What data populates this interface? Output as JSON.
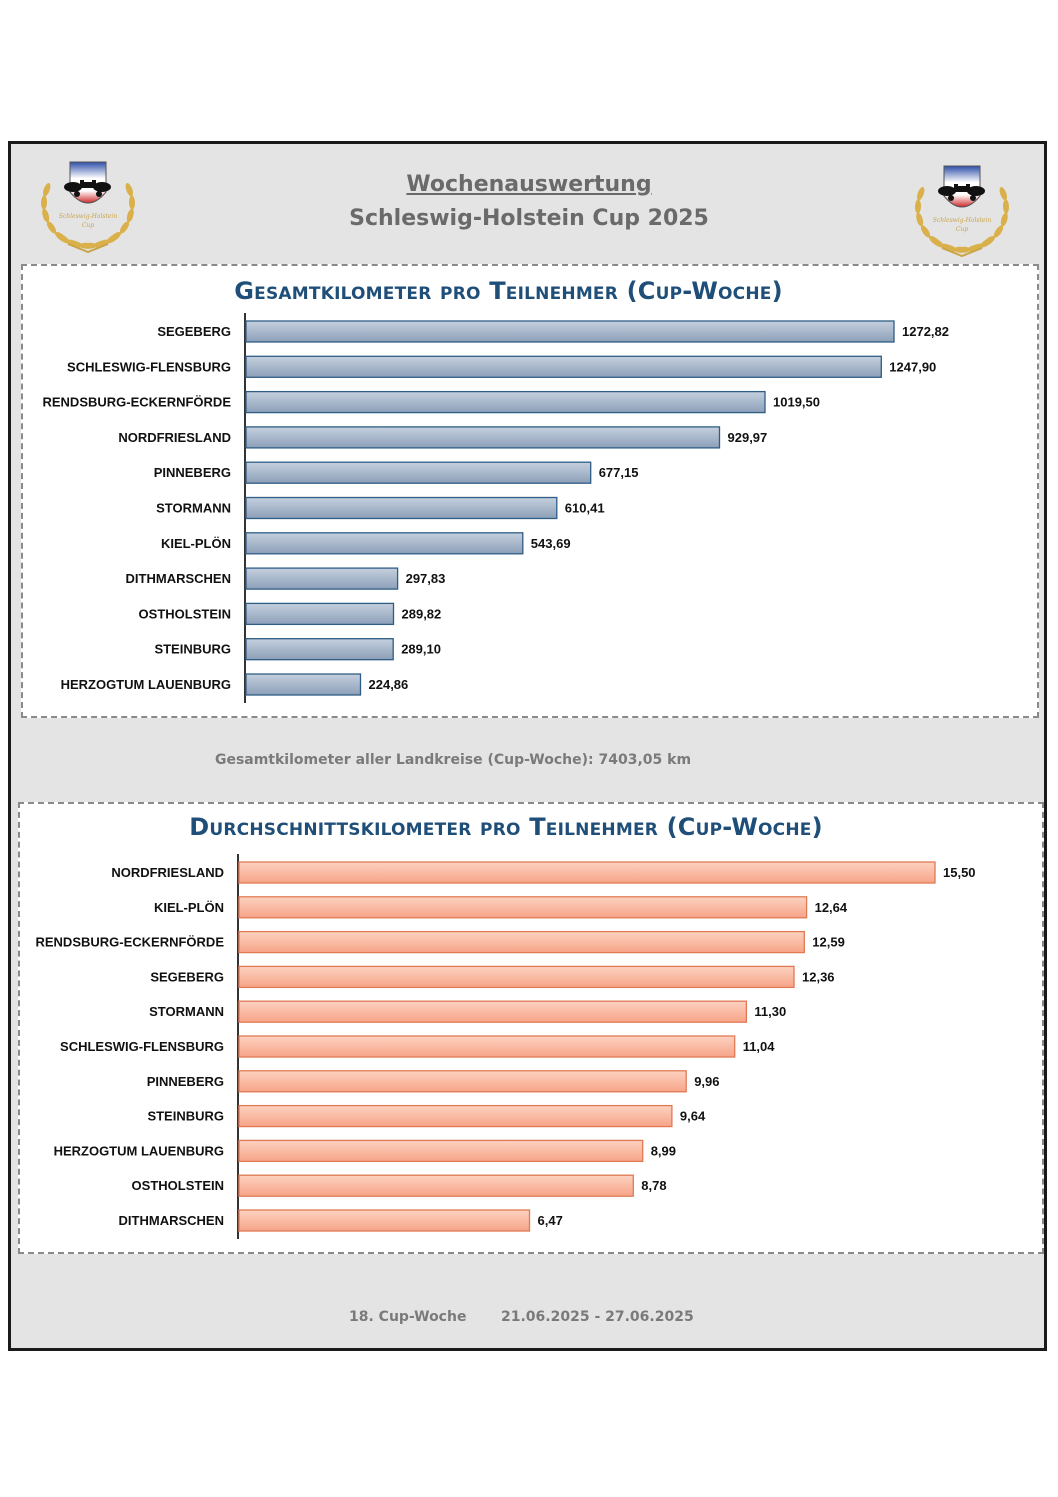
{
  "header": {
    "title_line1": "Wochenauswertung",
    "title_line2": "Schleswig-Holstein Cup 2025"
  },
  "logo": {
    "text_line1": "Schleswig-Holstein",
    "text_line2": "Cup"
  },
  "colors": {
    "frame_bg": "#e4e4e4",
    "title_blue": "#1f4e79",
    "bar_blue_top": "#c5d0de",
    "bar_blue_bottom": "#8c9fb8",
    "bar_blue_stroke": "#2f5d86",
    "bar_orange_top": "#fcd2c1",
    "bar_orange_bottom": "#f7a487",
    "bar_orange_stroke": "#e07a56"
  },
  "chart_data": [
    {
      "type": "bar",
      "orientation": "horizontal",
      "title": "Gesamtkilometer pro Teilnehmer (Cup-Woche)",
      "categories": [
        "SEGEBERG",
        "SCHLESWIG-FLENSBURG",
        "RENDSBURG-ECKERNFÖRDE",
        "NORDFRIESLAND",
        "PINNEBERG",
        "STORMANN",
        "KIEL-PLÖN",
        "DITHMARSCHEN",
        "OSTHOLSTEIN",
        "STEINBURG",
        "HERZOGTUM LAUENBURG"
      ],
      "values": [
        1272.82,
        1247.9,
        1019.5,
        929.97,
        677.15,
        610.41,
        543.69,
        297.83,
        289.82,
        289.1,
        224.86
      ],
      "value_labels": [
        "1272,82",
        "1247,90",
        "1019,50",
        "929,97",
        "677,15",
        "610,41",
        "543,69",
        "297,83",
        "289,82",
        "289,10",
        "224,86"
      ],
      "xlim": [
        0,
        1272.82
      ],
      "grid": false,
      "legend": "none"
    },
    {
      "type": "bar",
      "orientation": "horizontal",
      "title": "Durchschnittskilometer pro Teilnehmer (Cup-Woche)",
      "categories": [
        "NORDFRIESLAND",
        "KIEL-PLÖN",
        "RENDSBURG-ECKERNFÖRDE",
        "SEGEBERG",
        "STORMANN",
        "SCHLESWIG-FLENSBURG",
        "PINNEBERG",
        "STEINBURG",
        "HERZOGTUM LAUENBURG",
        "OSTHOLSTEIN",
        "DITHMARSCHEN"
      ],
      "values": [
        15.5,
        12.64,
        12.59,
        12.36,
        11.3,
        11.04,
        9.96,
        9.64,
        8.99,
        8.78,
        6.47
      ],
      "value_labels": [
        "15,50",
        "12,64",
        "12,59",
        "12,36",
        "11,30",
        "11,04",
        "9,96",
        "9,64",
        "8,99",
        "8,78",
        "6,47"
      ],
      "xlim": [
        0,
        15.5
      ],
      "grid": false,
      "legend": "none"
    }
  ],
  "summary": {
    "total_text": "Gesamtkilometer aller Landkreise (Cup-Woche): 7403,05 km"
  },
  "footer": {
    "week": "18. Cup-Woche",
    "dates": "21.06.2025 - 27.06.2025"
  }
}
